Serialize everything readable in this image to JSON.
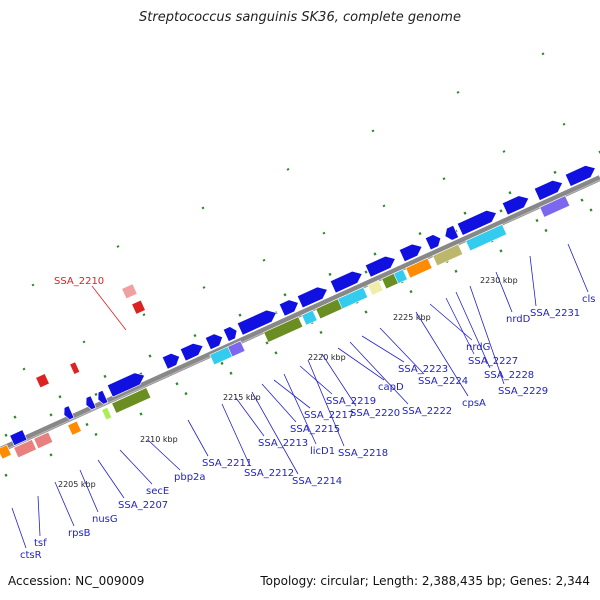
{
  "title": "Streptococcus sanguinis SK36, complete genome",
  "footer": {
    "accession": "Accession: NC_009009",
    "topology": "Topology: circular; Length: 2,388,435 bp; Genes: 2,344"
  },
  "kbp_labels": [
    "2205 kbp",
    "2210 kbp",
    "2215 kbp",
    "2220 kbp",
    "2225 kbp",
    "2230 kbp"
  ],
  "gene_labels": [
    "ctsR",
    "tsf",
    "rpsB",
    "nusG",
    "SSA_2207",
    "secE",
    "pbp2a",
    "SSA_2211",
    "SSA_2212",
    "SSA_2213",
    "SSA_2214",
    "SSA_2215",
    "licD1",
    "SSA_2217",
    "SSA_2218",
    "SSA_2219",
    "SSA_2220",
    "capD",
    "SSA_2222",
    "SSA_2223",
    "SSA_2224",
    "cpsA",
    "nrdG",
    "SSA_2227",
    "SSA_2228",
    "SSA_2229",
    "nrdD",
    "SSA_2231",
    "cls"
  ],
  "highlight_label": "SSA_2210",
  "colors": {
    "cds": "#1010e0",
    "backbone": "#888888",
    "ticks": "#2a8a2a",
    "highlight": "#dd2222",
    "olive": "#6b8e23",
    "pink": "#e88080",
    "cyan": "#33ccee",
    "orange": "#ff8c00",
    "purple": "#7b68ee",
    "khaki": "#bdb76b",
    "pale": "#eeeeaa"
  }
}
